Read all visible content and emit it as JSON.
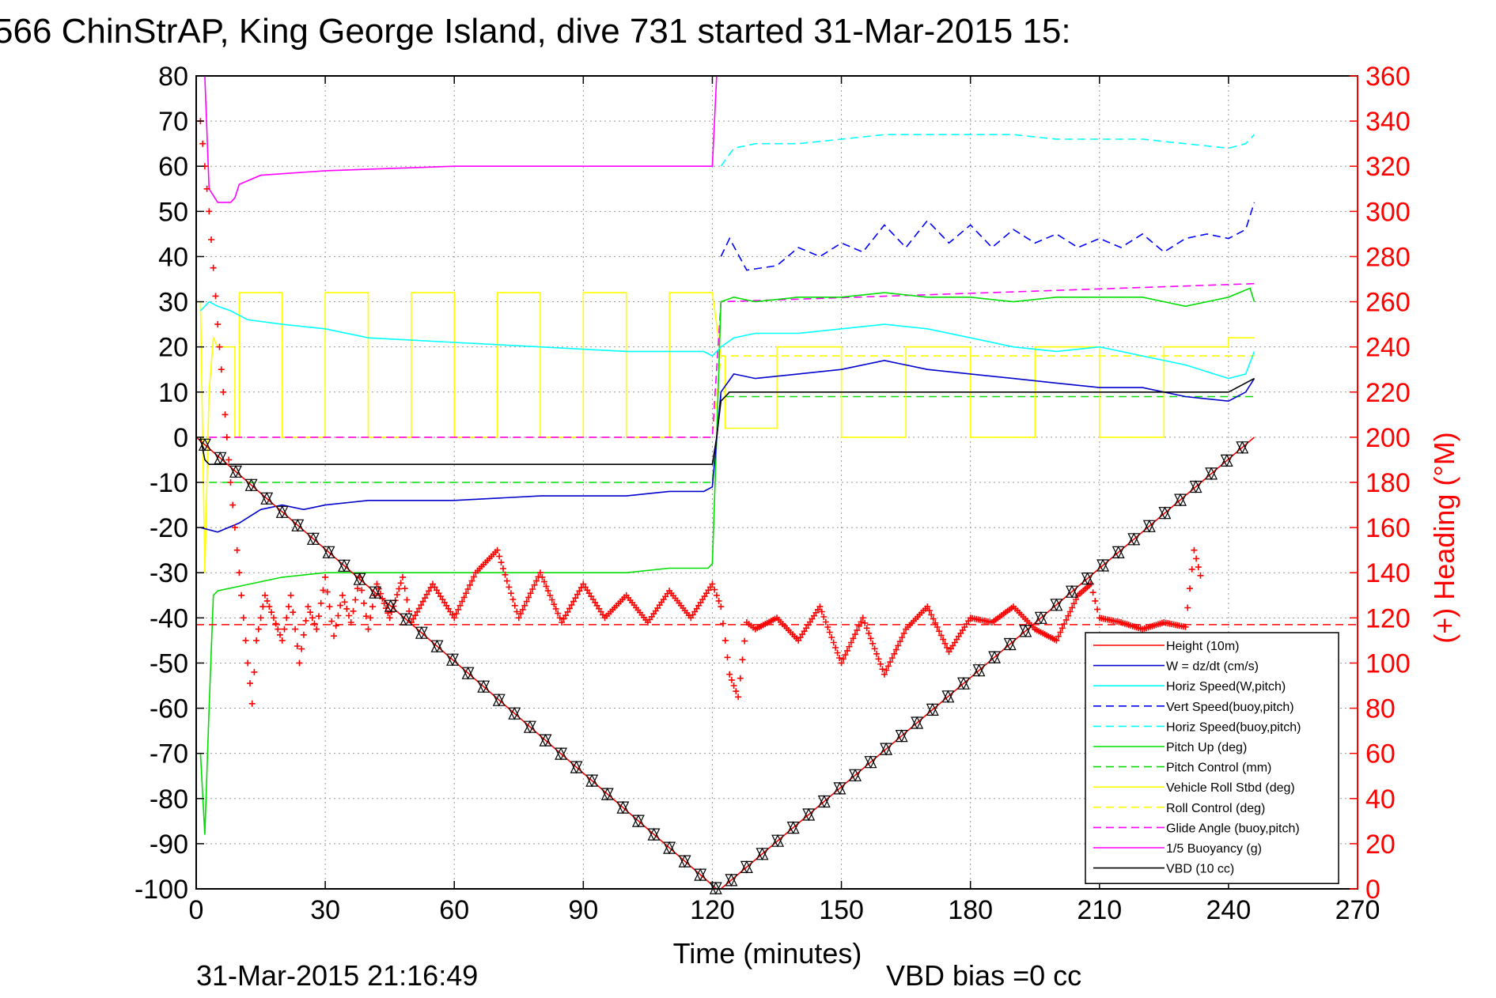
{
  "chart_data": {
    "type": "line",
    "title": "566 ChinStrAP, King George Island, dive 731 started 31-Mar-2015 15:",
    "xlabel": "Time (minutes)",
    "ylabel": "",
    "ylabel_right": "(+) Heading (°M)",
    "xlim": [
      0,
      270
    ],
    "ylim": [
      -100,
      80
    ],
    "ylim_right": [
      0,
      360
    ],
    "x_ticks": [
      0,
      30,
      60,
      90,
      120,
      150,
      180,
      210,
      240,
      270
    ],
    "y_ticks": [
      80,
      70,
      60,
      50,
      40,
      30,
      20,
      10,
      0,
      -10,
      -20,
      -30,
      -40,
      -50,
      -60,
      -70,
      -80,
      -90,
      -100
    ],
    "y_ticks_right": [
      360,
      340,
      320,
      300,
      280,
      260,
      240,
      220,
      200,
      180,
      160,
      140,
      120,
      100,
      80,
      60,
      40,
      20,
      0
    ],
    "grid": true,
    "legend_position": "bottom-right",
    "footer_left": "31-Mar-2015 21:16:49",
    "footer_right": "VBD bias =0 cc",
    "colors": {
      "height": "#ff0000",
      "w": "#0000cc",
      "horiz_speed": "#00ffff",
      "pitch": "#00dd00",
      "roll": "#ffff00",
      "glide": "#ff00ff",
      "buoyancy": "#ff00ff",
      "vbd": "#000000",
      "heading": "#ff0000"
    },
    "series": [
      {
        "name": "Height (10m)",
        "color": "#ff0000",
        "dash": "",
        "x": [
          0,
          121,
          122,
          246
        ],
        "y": [
          0,
          -100,
          -100,
          0
        ]
      },
      {
        "name": "W = dz/dt (cm/s)",
        "color": "#0000cc",
        "dash": "",
        "x": [
          1,
          5,
          10,
          15,
          20,
          25,
          30,
          40,
          60,
          80,
          100,
          110,
          118,
          120,
          122,
          125,
          130,
          140,
          150,
          160,
          170,
          180,
          190,
          200,
          210,
          220,
          230,
          240,
          244,
          246
        ],
        "y": [
          -20,
          -21,
          -19,
          -16,
          -15,
          -16,
          -15,
          -14,
          -14,
          -13,
          -13,
          -12,
          -12,
          -11,
          10,
          14,
          13,
          14,
          15,
          17,
          15,
          14,
          13,
          12,
          11,
          11,
          9,
          8,
          10,
          13
        ]
      },
      {
        "name": "Horiz Speed(W,pitch)",
        "color": "#00ffff",
        "dash": "",
        "x": [
          1,
          3,
          5,
          8,
          12,
          20,
          30,
          40,
          60,
          80,
          100,
          110,
          118,
          120,
          122,
          125,
          130,
          140,
          150,
          160,
          170,
          180,
          190,
          200,
          210,
          220,
          230,
          240,
          244,
          246
        ],
        "y": [
          28,
          30,
          29,
          28,
          26,
          25,
          24,
          22,
          21,
          20,
          19,
          19,
          19,
          18,
          20,
          22,
          23,
          23,
          24,
          25,
          24,
          22,
          20,
          19,
          20,
          18,
          16,
          13,
          14,
          19
        ]
      },
      {
        "name": "Vert Speed(buoy,pitch)",
        "color": "#0000ff",
        "dash": "10,6",
        "x": [
          122,
          124,
          128,
          135,
          140,
          145,
          150,
          155,
          160,
          165,
          170,
          175,
          180,
          185,
          190,
          195,
          200,
          205,
          210,
          215,
          220,
          225,
          230,
          235,
          240,
          244,
          246
        ],
        "y": [
          40,
          44,
          37,
          38,
          42,
          40,
          43,
          41,
          47,
          42,
          48,
          43,
          47,
          42,
          46,
          43,
          45,
          42,
          44,
          42,
          45,
          41,
          44,
          45,
          44,
          46,
          52
        ]
      },
      {
        "name": "Horiz Speed(buoy,pitch)",
        "color": "#00ffff",
        "dash": "10,6",
        "x": [
          122,
          125,
          130,
          140,
          150,
          160,
          170,
          180,
          190,
          200,
          210,
          220,
          230,
          240,
          244,
          246
        ],
        "y": [
          60,
          64,
          65,
          65,
          66,
          67,
          67,
          67,
          67,
          66,
          66,
          66,
          65,
          64,
          65,
          67
        ]
      },
      {
        "name": "Pitch Up (deg)",
        "color": "#00dd00",
        "dash": "",
        "x": [
          1,
          2,
          3,
          4,
          5,
          10,
          20,
          30,
          40,
          60,
          80,
          100,
          110,
          119,
          120,
          121,
          122,
          125,
          130,
          140,
          150,
          160,
          170,
          180,
          190,
          200,
          210,
          220,
          230,
          240,
          245,
          246
        ],
        "y": [
          -70,
          -88,
          -60,
          -35,
          -34,
          -33,
          -31,
          -30,
          -30,
          -30,
          -30,
          -30,
          -29,
          -29,
          -28,
          0,
          30,
          31,
          30,
          31,
          31,
          32,
          31,
          31,
          30,
          31,
          31,
          31,
          29,
          31,
          33,
          30
        ]
      },
      {
        "name": "Pitch Control (mm)",
        "color": "#00dd00",
        "dash": "10,6",
        "x": [
          3,
          120,
          121,
          122,
          246
        ],
        "y": [
          -10,
          -10,
          0,
          9,
          9
        ]
      },
      {
        "name": "Vehicle Roll Stbd (deg)",
        "color": "#ffff00",
        "dash": "",
        "x": [
          1,
          2,
          3,
          4,
          5,
          9,
          9,
          10,
          10,
          20,
          20,
          30,
          30,
          40,
          40,
          50,
          50,
          60,
          60,
          70,
          70,
          80,
          80,
          90,
          90,
          100,
          100,
          110,
          110,
          120,
          122,
          123,
          123,
          135,
          135,
          150,
          150,
          165,
          165,
          180,
          180,
          195,
          195,
          210,
          210,
          225,
          225,
          240,
          240,
          246
        ],
        "y": [
          30,
          -30,
          10,
          22,
          20,
          20,
          0,
          0,
          32,
          32,
          0,
          0,
          32,
          32,
          0,
          0,
          32,
          32,
          0,
          0,
          32,
          32,
          0,
          0,
          32,
          32,
          0,
          0,
          32,
          32,
          18,
          18,
          2,
          2,
          20,
          20,
          0,
          0,
          20,
          20,
          0,
          0,
          20,
          20,
          0,
          0,
          20,
          20,
          22,
          22
        ]
      },
      {
        "name": "Roll Control (deg)",
        "color": "#ffff00",
        "dash": "10,6",
        "x": [
          3,
          120,
          122,
          246
        ],
        "y": [
          0,
          0,
          18,
          18
        ]
      },
      {
        "name": "Glide Angle (buoy,pitch)",
        "color": "#ff00ff",
        "dash": "10,6",
        "x": [
          3,
          120,
          122,
          246
        ],
        "y": [
          0,
          0,
          30,
          34
        ]
      },
      {
        "name": "1/5 Buoyancy (g)",
        "color": "#ff00ff",
        "dash": "",
        "x": [
          2,
          3,
          5,
          8,
          9,
          10,
          15,
          30,
          60,
          90,
          120,
          121,
          122,
          246
        ],
        "y": [
          80,
          55,
          52,
          52,
          53,
          56,
          58,
          59,
          60,
          60,
          60,
          80,
          80,
          80
        ]
      },
      {
        "name": "VBD (10 cc)",
        "color": "#000000",
        "dash": "",
        "x": [
          1,
          2,
          3,
          4,
          120,
          121,
          122,
          124,
          240,
          246
        ],
        "y": [
          0,
          -5,
          -6,
          -6,
          -6,
          0,
          8,
          10,
          10,
          13
        ]
      }
    ],
    "heading_series": {
      "name": "Heading (°M)",
      "color": "#ff0000",
      "x": [
        1,
        2,
        3,
        5,
        8,
        10,
        12,
        13,
        14,
        16,
        18,
        20,
        22,
        24,
        26,
        28,
        30,
        32,
        34,
        36,
        38,
        40,
        42,
        45,
        48,
        50,
        55,
        60,
        65,
        70,
        75,
        80,
        85,
        90,
        95,
        100,
        105,
        110,
        115,
        120,
        122,
        124,
        126,
        128,
        130,
        135,
        140,
        145,
        150,
        155,
        160,
        165,
        170,
        175,
        180,
        185,
        190,
        195,
        200,
        205,
        208,
        210,
        215,
        220,
        225,
        230,
        232,
        234
      ],
      "y": [
        340,
        320,
        300,
        250,
        180,
        140,
        100,
        82,
        110,
        130,
        120,
        110,
        130,
        100,
        125,
        115,
        138,
        112,
        130,
        118,
        138,
        115,
        135,
        120,
        138,
        118,
        135,
        120,
        140,
        150,
        120,
        140,
        118,
        135,
        120,
        130,
        118,
        132,
        120,
        135,
        125,
        95,
        85,
        118,
        115,
        120,
        110,
        125,
        100,
        120,
        95,
        115,
        125,
        105,
        120,
        118,
        125,
        115,
        110,
        130,
        135,
        120,
        118,
        115,
        118,
        116,
        150,
        135
      ],
      "reference_value": 117
    }
  }
}
